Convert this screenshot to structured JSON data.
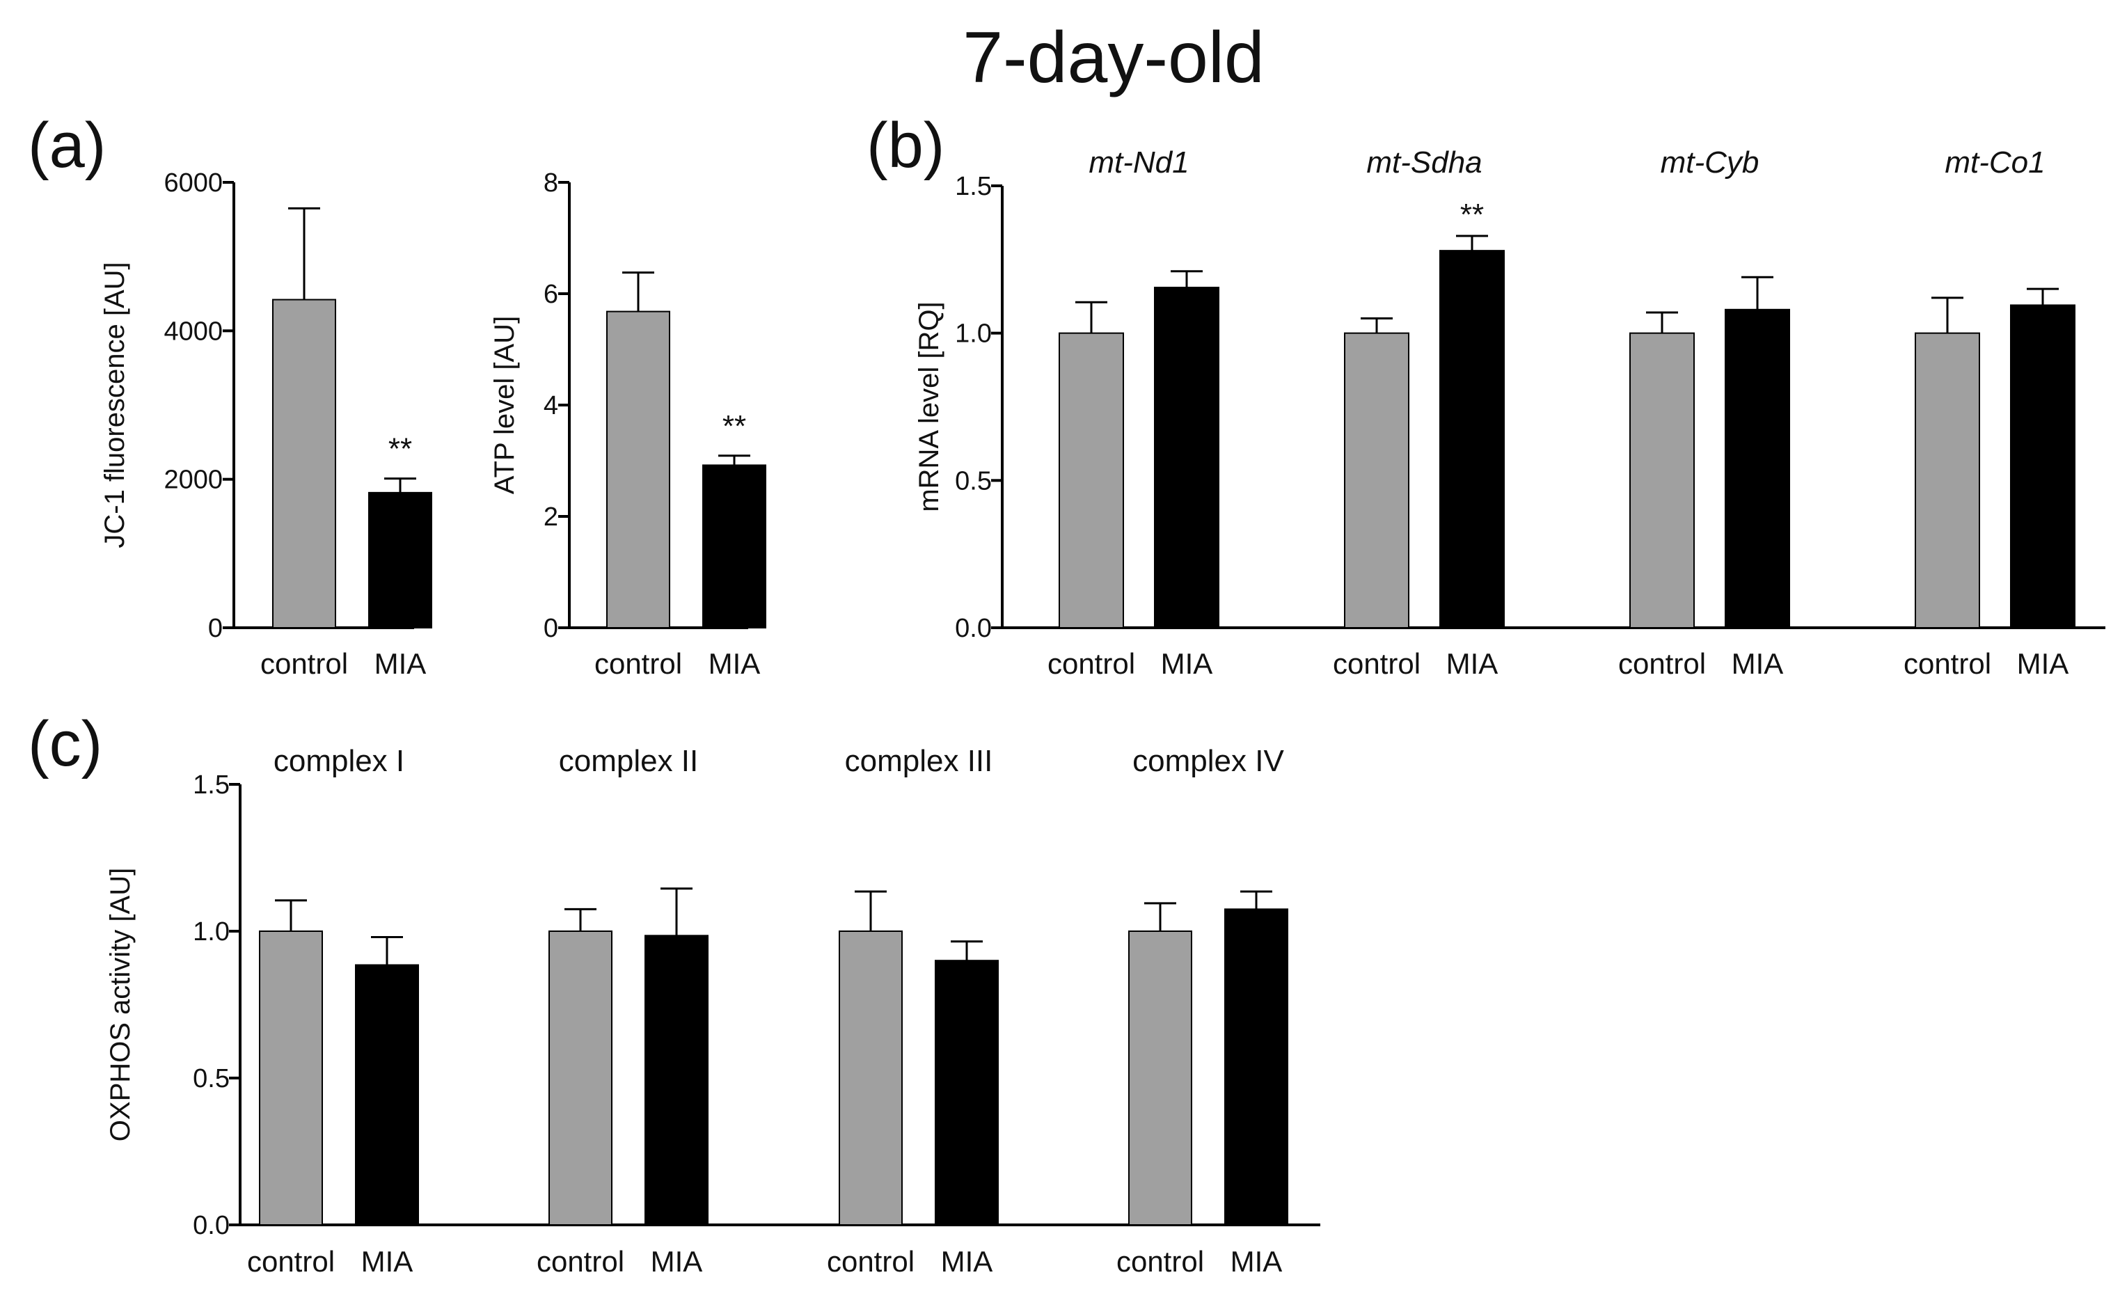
{
  "figure_title": "7-day-old",
  "colors": {
    "control": "#a0a0a0",
    "MIA": "#000000",
    "axis": "#000000"
  },
  "chart_data": [
    {
      "panel": "(a)",
      "type": "bar",
      "title": "",
      "ylabel": "JC-1 fluorescence [AU]",
      "xlabel": "",
      "ylim": [
        0,
        6000
      ],
      "yticks": [
        "0",
        "2000",
        "4000",
        "6000"
      ],
      "categories": [
        "control",
        "MIA"
      ],
      "values": [
        4420,
        1820
      ],
      "errors": [
        1230,
        190
      ],
      "annotations": [
        "",
        "**"
      ],
      "grid": false
    },
    {
      "panel": "",
      "type": "bar",
      "title": "",
      "ylabel": "ATP level [AU]",
      "xlabel": "",
      "ylim": [
        0,
        8
      ],
      "yticks": [
        "0",
        "2",
        "4",
        "6",
        "8"
      ],
      "categories": [
        "control",
        "MIA"
      ],
      "values": [
        5.68,
        2.92
      ],
      "errors": [
        0.7,
        0.17
      ],
      "annotations": [
        "",
        "**"
      ],
      "grid": false
    },
    {
      "panel": "(b)",
      "type": "bar",
      "title": "",
      "ylabel": "mRNA level [RQ]",
      "xlabel": "",
      "ylim": [
        0,
        1.5
      ],
      "yticks": [
        "0.0",
        "0.5",
        "1.0",
        "1.5"
      ],
      "group_label_style": "italic",
      "categories": [
        "control",
        "MIA"
      ],
      "groups": [
        {
          "label": "mt-Nd1",
          "values": [
            1.0,
            1.155
          ],
          "errors": [
            0.105,
            0.055
          ],
          "annotations": [
            "",
            ""
          ]
        },
        {
          "label": "mt-Sdha",
          "values": [
            1.0,
            1.28
          ],
          "errors": [
            0.05,
            0.05
          ],
          "annotations": [
            "",
            "**"
          ]
        },
        {
          "label": "mt-Cyb",
          "values": [
            1.0,
            1.08
          ],
          "errors": [
            0.07,
            0.11
          ],
          "annotations": [
            "",
            ""
          ]
        },
        {
          "label": "mt-Co1",
          "values": [
            1.0,
            1.095
          ],
          "errors": [
            0.12,
            0.055
          ],
          "annotations": [
            "",
            ""
          ]
        }
      ],
      "grid": false
    },
    {
      "panel": "(c)",
      "type": "bar",
      "title": "",
      "ylabel": "OXPHOS activity [AU]",
      "xlabel": "",
      "ylim": [
        0,
        1.5
      ],
      "yticks": [
        "0.0",
        "0.5",
        "1.0",
        "1.5"
      ],
      "group_label_style": "normal",
      "categories": [
        "control",
        "MIA"
      ],
      "groups": [
        {
          "label": "complex I",
          "values": [
            1.0,
            0.885
          ],
          "errors": [
            0.105,
            0.095
          ],
          "annotations": [
            "",
            ""
          ]
        },
        {
          "label": "complex II",
          "values": [
            1.0,
            0.985
          ],
          "errors": [
            0.075,
            0.16
          ],
          "annotations": [
            "",
            ""
          ]
        },
        {
          "label": "complex III",
          "values": [
            1.0,
            0.9
          ],
          "errors": [
            0.135,
            0.065
          ],
          "annotations": [
            "",
            ""
          ]
        },
        {
          "label": "complex IV",
          "values": [
            1.0,
            1.075
          ],
          "errors": [
            0.095,
            0.06
          ],
          "annotations": [
            "",
            ""
          ]
        }
      ],
      "grid": false
    }
  ]
}
